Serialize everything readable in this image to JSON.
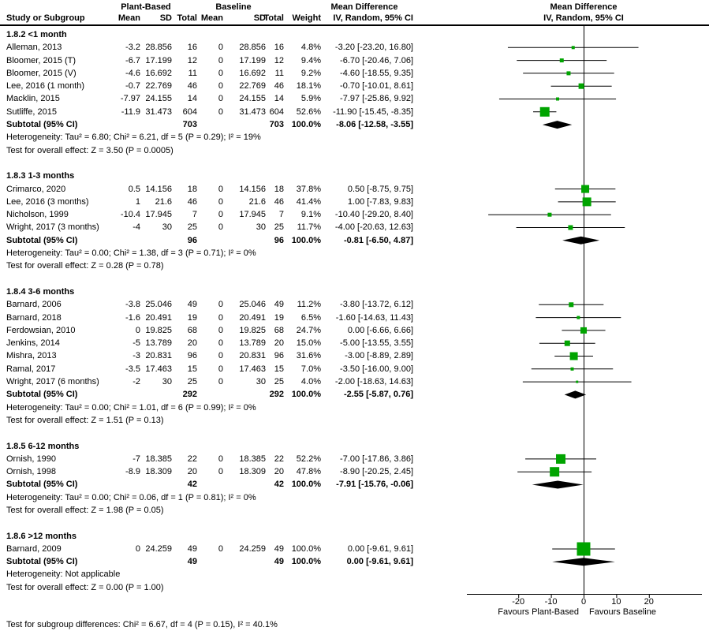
{
  "header": {
    "col_study": "Study or Subgroup",
    "group1_label": "Plant-Based",
    "group2_label": "Baseline",
    "col_mean": "Mean",
    "col_sd": "SD",
    "col_total": "Total",
    "col_weight": "Weight",
    "md_title": "Mean Difference",
    "md_subtitle": "IV, Random, 95% CI"
  },
  "axis": {
    "ticks": [
      -20,
      -10,
      0,
      10,
      20
    ],
    "range_min": -36,
    "range_max": 36,
    "favours_left": "Favours Plant-Based",
    "favours_right": "Favours Baseline"
  },
  "footer": {
    "subgroup_test": "Test for subgroup differences: Chi² = 6.67, df = 4 (P = 0.15), I² = 40.1%"
  },
  "colors": {
    "marker_green": "#00a400",
    "diamond_black": "#000000",
    "line_black": "#000000"
  },
  "chart_data": {
    "type": "forest",
    "effect_measure": "Mean Difference, IV, Random, 95% CI",
    "xlim": [
      -36,
      36
    ],
    "ticks": [
      -20,
      -10,
      0,
      10,
      20
    ],
    "groups": [
      {
        "label": "1.8.2 <1 month",
        "studies": [
          {
            "name": "Alleman, 2013",
            "mean1": "-3.2",
            "sd1": "28.856",
            "total1": "16",
            "mean2": "0",
            "sd2": "28.856",
            "total2": "16",
            "weight": "4.8%",
            "weight_pct": 4.8,
            "ci_text": "-3.20 [-23.20, 16.80]",
            "md": -3.2,
            "lo": -23.2,
            "hi": 16.8
          },
          {
            "name": "Bloomer, 2015 (T)",
            "mean1": "-6.7",
            "sd1": "17.199",
            "total1": "12",
            "mean2": "0",
            "sd2": "17.199",
            "total2": "12",
            "weight": "9.4%",
            "weight_pct": 9.4,
            "ci_text": "-6.70 [-20.46, 7.06]",
            "md": -6.7,
            "lo": -20.46,
            "hi": 7.06
          },
          {
            "name": "Bloomer, 2015 (V)",
            "mean1": "-4.6",
            "sd1": "16.692",
            "total1": "11",
            "mean2": "0",
            "sd2": "16.692",
            "total2": "11",
            "weight": "9.2%",
            "weight_pct": 9.2,
            "ci_text": "-4.60 [-18.55, 9.35]",
            "md": -4.6,
            "lo": -18.55,
            "hi": 9.35
          },
          {
            "name": "Lee, 2016 (1 month)",
            "mean1": "-0.7",
            "sd1": "22.769",
            "total1": "46",
            "mean2": "0",
            "sd2": "22.769",
            "total2": "46",
            "weight": "18.1%",
            "weight_pct": 18.1,
            "ci_text": "-0.70 [-10.01, 8.61]",
            "md": -0.7,
            "lo": -10.01,
            "hi": 8.61
          },
          {
            "name": "Macklin, 2015",
            "mean1": "-7.97",
            "sd1": "24.155",
            "total1": "14",
            "mean2": "0",
            "sd2": "24.155",
            "total2": "14",
            "weight": "5.9%",
            "weight_pct": 5.9,
            "ci_text": "-7.97 [-25.86, 9.92]",
            "md": -7.97,
            "lo": -25.86,
            "hi": 9.92
          },
          {
            "name": "Sutliffe, 2015",
            "mean1": "-11.9",
            "sd1": "31.473",
            "total1": "604",
            "mean2": "0",
            "sd2": "31.473",
            "total2": "604",
            "weight": "52.6%",
            "weight_pct": 52.6,
            "ci_text": "-11.90 [-15.45, -8.35]",
            "md": -11.9,
            "lo": -15.45,
            "hi": -8.35
          }
        ],
        "subtotal": {
          "label": "Subtotal (95% CI)",
          "total1": "703",
          "total2": "703",
          "weight": "100.0%",
          "ci_text": "-8.06 [-12.58, -3.55]",
          "md": -8.06,
          "lo": -12.58,
          "hi": -3.55
        },
        "heterogeneity": "Heterogeneity: Tau² = 6.80; Chi² = 6.21, df = 5 (P = 0.29); I² = 19%",
        "overall_effect": "Test for overall effect: Z = 3.50 (P = 0.0005)"
      },
      {
        "label": "1.8.3 1-3 months",
        "studies": [
          {
            "name": "Crimarco, 2020",
            "mean1": "0.5",
            "sd1": "14.156",
            "total1": "18",
            "mean2": "0",
            "sd2": "14.156",
            "total2": "18",
            "weight": "37.8%",
            "weight_pct": 37.8,
            "ci_text": "0.50 [-8.75, 9.75]",
            "md": 0.5,
            "lo": -8.75,
            "hi": 9.75
          },
          {
            "name": "Lee, 2016 (3 months)",
            "mean1": "1",
            "sd1": "21.6",
            "total1": "46",
            "mean2": "0",
            "sd2": "21.6",
            "total2": "46",
            "weight": "41.4%",
            "weight_pct": 41.4,
            "ci_text": "1.00 [-7.83, 9.83]",
            "md": 1.0,
            "lo": -7.83,
            "hi": 9.83
          },
          {
            "name": "Nicholson, 1999",
            "mean1": "-10.4",
            "sd1": "17.945",
            "total1": "7",
            "mean2": "0",
            "sd2": "17.945",
            "total2": "7",
            "weight": "9.1%",
            "weight_pct": 9.1,
            "ci_text": "-10.40 [-29.20, 8.40]",
            "md": -10.4,
            "lo": -29.2,
            "hi": 8.4
          },
          {
            "name": "Wright, 2017 (3 months)",
            "mean1": "-4",
            "sd1": "30",
            "total1": "25",
            "mean2": "0",
            "sd2": "30",
            "total2": "25",
            "weight": "11.7%",
            "weight_pct": 11.7,
            "ci_text": "-4.00 [-20.63, 12.63]",
            "md": -4.0,
            "lo": -20.63,
            "hi": 12.63
          }
        ],
        "subtotal": {
          "label": "Subtotal (95% CI)",
          "total1": "96",
          "total2": "96",
          "weight": "100.0%",
          "ci_text": "-0.81 [-6.50, 4.87]",
          "md": -0.81,
          "lo": -6.5,
          "hi": 4.87
        },
        "heterogeneity": "Heterogeneity: Tau² = 0.00; Chi² = 1.38, df = 3 (P = 0.71); I² = 0%",
        "overall_effect": "Test for overall effect: Z = 0.28 (P = 0.78)"
      },
      {
        "label": "1.8.4 3-6 months",
        "studies": [
          {
            "name": "Barnard, 2006",
            "mean1": "-3.8",
            "sd1": "25.046",
            "total1": "49",
            "mean2": "0",
            "sd2": "25.046",
            "total2": "49",
            "weight": "11.2%",
            "weight_pct": 11.2,
            "ci_text": "-3.80 [-13.72, 6.12]",
            "md": -3.8,
            "lo": -13.72,
            "hi": 6.12
          },
          {
            "name": "Barnard, 2018",
            "mean1": "-1.6",
            "sd1": "20.491",
            "total1": "19",
            "mean2": "0",
            "sd2": "20.491",
            "total2": "19",
            "weight": "6.5%",
            "weight_pct": 6.5,
            "ci_text": "-1.60 [-14.63, 11.43]",
            "md": -1.6,
            "lo": -14.63,
            "hi": 11.43
          },
          {
            "name": "Ferdowsian, 2010",
            "mean1": "0",
            "sd1": "19.825",
            "total1": "68",
            "mean2": "0",
            "sd2": "19.825",
            "total2": "68",
            "weight": "24.7%",
            "weight_pct": 24.7,
            "ci_text": "0.00 [-6.66, 6.66]",
            "md": 0.0,
            "lo": -6.66,
            "hi": 6.66
          },
          {
            "name": "Jenkins, 2014",
            "mean1": "-5",
            "sd1": "13.789",
            "total1": "20",
            "mean2": "0",
            "sd2": "13.789",
            "total2": "20",
            "weight": "15.0%",
            "weight_pct": 15.0,
            "ci_text": "-5.00 [-13.55, 3.55]",
            "md": -5.0,
            "lo": -13.55,
            "hi": 3.55
          },
          {
            "name": "Mishra, 2013",
            "mean1": "-3",
            "sd1": "20.831",
            "total1": "96",
            "mean2": "0",
            "sd2": "20.831",
            "total2": "96",
            "weight": "31.6%",
            "weight_pct": 31.6,
            "ci_text": "-3.00 [-8.89, 2.89]",
            "md": -3.0,
            "lo": -8.89,
            "hi": 2.89
          },
          {
            "name": "Ramal, 2017",
            "mean1": "-3.5",
            "sd1": "17.463",
            "total1": "15",
            "mean2": "0",
            "sd2": "17.463",
            "total2": "15",
            "weight": "7.0%",
            "weight_pct": 7.0,
            "ci_text": "-3.50 [-16.00, 9.00]",
            "md": -3.5,
            "lo": -16.0,
            "hi": 9.0
          },
          {
            "name": "Wright, 2017 (6 months)",
            "mean1": "-2",
            "sd1": "30",
            "total1": "25",
            "mean2": "0",
            "sd2": "30",
            "total2": "25",
            "weight": "4.0%",
            "weight_pct": 4.0,
            "ci_text": "-2.00 [-18.63, 14.63]",
            "md": -2.0,
            "lo": -18.63,
            "hi": 14.63
          }
        ],
        "subtotal": {
          "label": "Subtotal (95% CI)",
          "total1": "292",
          "total2": "292",
          "weight": "100.0%",
          "ci_text": "-2.55 [-5.87, 0.76]",
          "md": -2.55,
          "lo": -5.87,
          "hi": 0.76
        },
        "heterogeneity": "Heterogeneity: Tau² = 0.00; Chi² = 1.01, df = 6 (P = 0.99); I² = 0%",
        "overall_effect": "Test for overall effect: Z = 1.51 (P = 0.13)"
      },
      {
        "label": "1.8.5 6-12 months",
        "studies": [
          {
            "name": "Ornish, 1990",
            "mean1": "-7",
            "sd1": "18.385",
            "total1": "22",
            "mean2": "0",
            "sd2": "18.385",
            "total2": "22",
            "weight": "52.2%",
            "weight_pct": 52.2,
            "ci_text": "-7.00 [-17.86, 3.86]",
            "md": -7.0,
            "lo": -17.86,
            "hi": 3.86
          },
          {
            "name": "Ornish, 1998",
            "mean1": "-8.9",
            "sd1": "18.309",
            "total1": "20",
            "mean2": "0",
            "sd2": "18.309",
            "total2": "20",
            "weight": "47.8%",
            "weight_pct": 47.8,
            "ci_text": "-8.90 [-20.25, 2.45]",
            "md": -8.9,
            "lo": -20.25,
            "hi": 2.45
          }
        ],
        "subtotal": {
          "label": "Subtotal (95% CI)",
          "total1": "42",
          "total2": "42",
          "weight": "100.0%",
          "ci_text": "-7.91 [-15.76, -0.06]",
          "md": -7.91,
          "lo": -15.76,
          "hi": -0.06
        },
        "heterogeneity": "Heterogeneity: Tau² = 0.00; Chi² = 0.06, df = 1 (P = 0.81); I² = 0%",
        "overall_effect": "Test for overall effect: Z = 1.98 (P = 0.05)"
      },
      {
        "label": "1.8.6 >12 months",
        "studies": [
          {
            "name": "Barnard, 2009",
            "mean1": "0",
            "sd1": "24.259",
            "total1": "49",
            "mean2": "0",
            "sd2": "24.259",
            "total2": "49",
            "weight": "100.0%",
            "weight_pct": 100.0,
            "ci_text": "0.00 [-9.61, 9.61]",
            "md": 0.0,
            "lo": -9.61,
            "hi": 9.61
          }
        ],
        "subtotal": {
          "label": "Subtotal (95% CI)",
          "total1": "49",
          "total2": "49",
          "weight": "100.0%",
          "ci_text": "0.00 [-9.61, 9.61]",
          "md": 0.0,
          "lo": -9.61,
          "hi": 9.61
        },
        "heterogeneity": "Heterogeneity: Not applicable",
        "overall_effect": "Test for overall effect: Z = 0.00 (P = 1.00)"
      }
    ]
  }
}
